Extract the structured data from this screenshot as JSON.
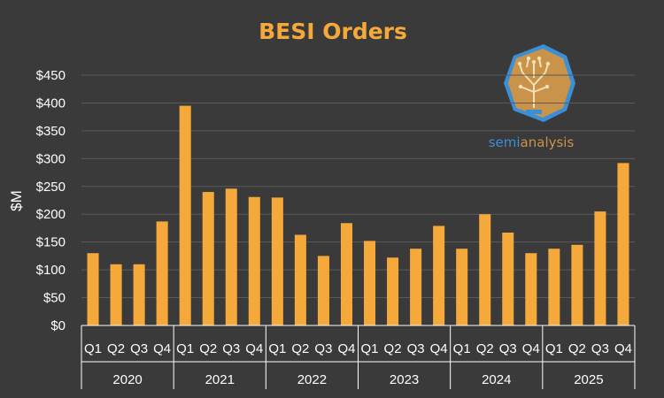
{
  "colors": {
    "background": "#3a3a3a",
    "bar": "#f5a93b",
    "title": "#f5a93b",
    "text": "#ffffff",
    "grid": "#5a5a5a",
    "logo_primary": "#3b8fd6",
    "logo_accent": "#c9934a"
  },
  "logo": {
    "brand_part1": "semi",
    "brand_part2": "analysis",
    "icon": "tree-circuit-icon"
  },
  "chart_data": {
    "type": "bar",
    "title": "BESI Orders",
    "xlabel": "",
    "ylabel": "$M",
    "ylim": [
      0,
      450
    ],
    "yticks": [
      0,
      50,
      100,
      150,
      200,
      250,
      300,
      350,
      400,
      450
    ],
    "ytick_labels": [
      "$0",
      "$50",
      "$100",
      "$150",
      "$200",
      "$250",
      "$300",
      "$350",
      "$400",
      "$450"
    ],
    "grid": true,
    "legend": "none",
    "groups": [
      "2020",
      "2021",
      "2022",
      "2023",
      "2024",
      "2025"
    ],
    "quarters": [
      "Q1",
      "Q2",
      "Q3",
      "Q4"
    ],
    "series": [
      {
        "values": [
          130,
          110,
          110,
          187,
          395,
          240,
          246,
          231,
          230,
          163,
          125,
          184,
          152,
          122,
          138,
          179,
          138,
          200,
          167,
          130,
          138,
          145,
          205,
          292
        ]
      }
    ]
  }
}
